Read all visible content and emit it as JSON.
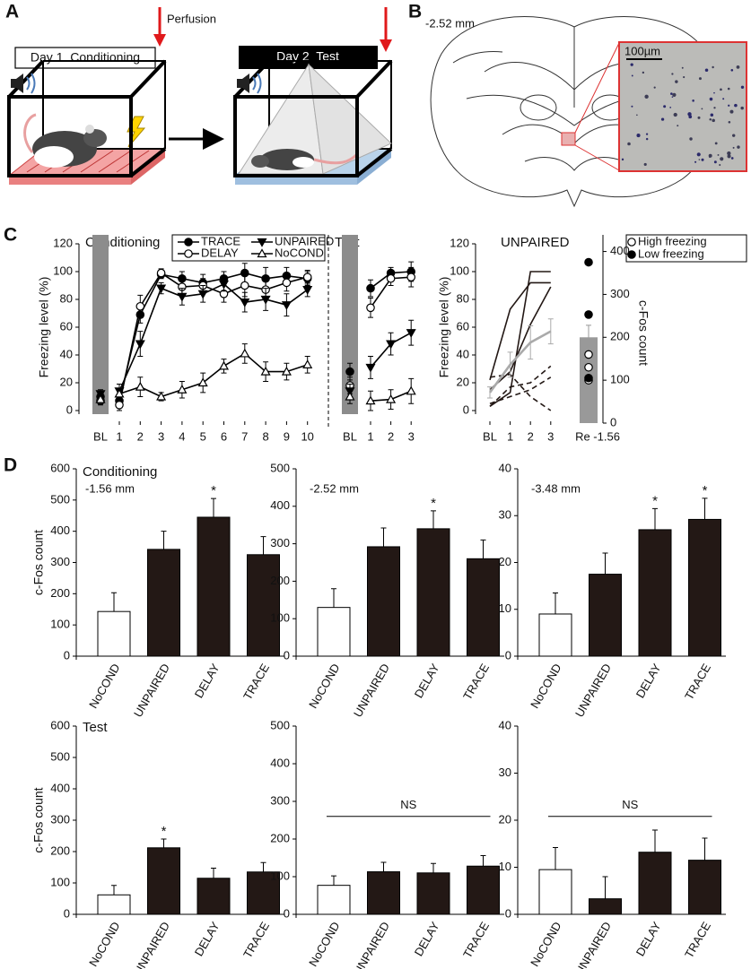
{
  "panels": {
    "A": {
      "label": "A",
      "perfusion": "Perfusion",
      "day1": "Day 1  Conditioning",
      "day2": "Day 2  Test"
    },
    "B": {
      "label": "B",
      "level": "-2.52 mm",
      "scale": "100µm"
    },
    "C": {
      "label": "C"
    },
    "D": {
      "label": "D"
    }
  },
  "chart_data": [
    {
      "type": "line",
      "title": "Conditioning",
      "ylabel": "Freezing level (%)",
      "baseline_label": "BL",
      "categories": [
        "1",
        "2",
        "3",
        "4",
        "5",
        "6",
        "7",
        "8",
        "9",
        "10"
      ],
      "ylim": [
        0,
        120
      ],
      "yticks": [
        0,
        20,
        40,
        60,
        80,
        100,
        120
      ],
      "legend": "top",
      "series": [
        {
          "name": "TRACE",
          "color": "#000000",
          "marker": "filled-circle",
          "baseline": 10,
          "baseline_error": 3,
          "values": [
            7,
            69,
            98,
            95,
            92,
            95,
            99,
            95,
            97,
            95
          ],
          "errors": [
            4,
            6,
            3,
            5,
            6,
            5,
            7,
            8,
            6,
            5
          ]
        },
        {
          "name": "DELAY",
          "color": "#000000",
          "marker": "open-circle",
          "baseline": 7,
          "baseline_error": 3,
          "values": [
            4,
            75,
            99,
            89,
            90,
            84,
            90,
            87,
            92,
            96
          ],
          "errors": [
            4,
            8,
            3,
            6,
            5,
            6,
            8,
            7,
            6,
            5
          ]
        },
        {
          "name": "UNPAIRED",
          "color": "#000000",
          "marker": "filled-triangle-down",
          "baseline": 12,
          "baseline_error": 3,
          "values": [
            14,
            48,
            88,
            82,
            84,
            91,
            78,
            80,
            76,
            87
          ],
          "errors": [
            5,
            9,
            4,
            6,
            6,
            5,
            7,
            8,
            8,
            5
          ]
        },
        {
          "name": "NoCOND",
          "color": "#000000",
          "marker": "open-triangle-up",
          "baseline": 8,
          "baseline_error": 3,
          "values": [
            12,
            17,
            10,
            15,
            20,
            32,
            41,
            28,
            28,
            33
          ],
          "errors": [
            4,
            7,
            3,
            6,
            7,
            5,
            7,
            7,
            6,
            6
          ]
        }
      ]
    },
    {
      "type": "line",
      "title": "Test",
      "baseline_label": "BL",
      "categories": [
        "1",
        "2",
        "3"
      ],
      "ylim": [
        0,
        120
      ],
      "series": [
        {
          "color": "#000000",
          "marker": "filled-circle",
          "baseline": 28,
          "baseline_error": 6,
          "values": [
            88,
            99,
            100
          ],
          "errors": [
            6,
            4,
            7
          ]
        },
        {
          "color": "#000000",
          "marker": "open-circle",
          "baseline": 18,
          "baseline_error": 6,
          "values": [
            74,
            95,
            96
          ],
          "errors": [
            7,
            5,
            7
          ]
        },
        {
          "color": "#000000",
          "marker": "filled-triangle-down",
          "baseline": 14,
          "baseline_error": 5,
          "values": [
            31,
            48,
            56
          ],
          "errors": [
            8,
            8,
            9
          ]
        },
        {
          "color": "#000000",
          "marker": "open-triangle-up",
          "baseline": 10,
          "baseline_error": 5,
          "values": [
            7,
            8,
            14
          ],
          "errors": [
            7,
            7,
            9
          ]
        }
      ]
    },
    {
      "type": "line",
      "title": "UNPAIRED",
      "ylabel": "Freezing level (%)",
      "categories": [
        "BL",
        "1",
        "2",
        "3"
      ],
      "ylim": [
        0,
        120
      ],
      "yticks": [
        0,
        20,
        40,
        60,
        80,
        100,
        120
      ],
      "series": [
        {
          "color": "#231815",
          "style": "solid",
          "values": [
            3,
            13,
            100,
            100
          ]
        },
        {
          "color": "#231815",
          "style": "solid",
          "values": [
            22,
            73,
            92,
            92
          ]
        },
        {
          "color": "#231815",
          "style": "solid",
          "values": [
            15,
            28,
            62,
            89
          ]
        },
        {
          "color": "#231815",
          "style": "dashed",
          "values": [
            24,
            26,
            10,
            0
          ]
        },
        {
          "color": "#231815",
          "style": "dashed",
          "values": [
            3,
            17,
            20,
            32
          ]
        },
        {
          "color": "#231815",
          "style": "dashed",
          "values": [
            5,
            10,
            15,
            24
          ]
        },
        {
          "color": "#aaaaaa",
          "style": "solid",
          "values": [
            13,
            33,
            49,
            57
          ],
          "errors": [
            4,
            9,
            12,
            9
          ]
        }
      ]
    },
    {
      "type": "bar",
      "categories": [
        "Re -1.56"
      ],
      "values": [
        200
      ],
      "errors": [
        28
      ],
      "color": "#999999",
      "y2label": "c-Fos count",
      "y2lim": [
        0,
        420
      ],
      "y2ticks": [
        0,
        100,
        200,
        300,
        400
      ],
      "legend": "upper right",
      "points": [
        {
          "name": "High freezing",
          "marker": "open-circle",
          "color": "#000000",
          "values": [
            160,
            130,
            100
          ]
        },
        {
          "name": "Low freezing",
          "marker": "filled-circle",
          "color": "#000000",
          "values": [
            375,
            253,
            105
          ]
        }
      ]
    },
    {
      "type": "bar",
      "title": "Conditioning",
      "subtitle": "-1.56 mm",
      "ylabel": "c-Fos count",
      "categories": [
        "NoCOND",
        "UNPAIRED",
        "DELAY",
        "TRACE"
      ],
      "values": [
        143,
        342,
        445,
        325
      ],
      "errors": [
        60,
        58,
        60,
        58
      ],
      "colors": [
        "#ffffff",
        "#231815",
        "#231815",
        "#231815"
      ],
      "significance": [
        null,
        null,
        "*",
        null
      ],
      "ylim": [
        0,
        600
      ],
      "yticks": [
        0,
        100,
        200,
        300,
        400,
        500,
        600
      ]
    },
    {
      "type": "bar",
      "subtitle": "-2.52 mm",
      "categories": [
        "NoCOND",
        "UNPAIRED",
        "DELAY",
        "TRACE"
      ],
      "values": [
        130,
        292,
        340,
        260
      ],
      "errors": [
        50,
        50,
        48,
        50
      ],
      "colors": [
        "#ffffff",
        "#231815",
        "#231815",
        "#231815"
      ],
      "significance": [
        null,
        null,
        "*",
        null
      ],
      "ylim": [
        0,
        500
      ],
      "yticks": [
        0,
        100,
        200,
        300,
        400,
        500
      ]
    },
    {
      "type": "bar",
      "subtitle": "-3.48 mm",
      "categories": [
        "NoCOND",
        "UNPAIRED",
        "DELAY",
        "TRACE"
      ],
      "values": [
        9,
        17.5,
        27,
        29.2
      ],
      "errors": [
        4.5,
        4.5,
        4.5,
        4.5
      ],
      "colors": [
        "#ffffff",
        "#231815",
        "#231815",
        "#231815"
      ],
      "significance": [
        null,
        null,
        "*",
        "*"
      ],
      "ylim": [
        0,
        40
      ],
      "yticks": [
        0,
        10,
        20,
        30,
        40
      ]
    },
    {
      "type": "bar",
      "title": "Test",
      "ylabel": "c-Fos count",
      "categories": [
        "NoCOND",
        "UNPAIRED",
        "DELAY",
        "TRACE"
      ],
      "values": [
        62,
        212,
        115,
        135
      ],
      "errors": [
        30,
        28,
        32,
        30
      ],
      "colors": [
        "#ffffff",
        "#231815",
        "#231815",
        "#231815"
      ],
      "significance": [
        null,
        "*",
        null,
        null
      ],
      "ylim": [
        0,
        600
      ],
      "yticks": [
        0,
        100,
        200,
        300,
        400,
        500,
        600
      ]
    },
    {
      "type": "bar",
      "bracket_label": "NS",
      "categories": [
        "NoCOND",
        "UNPAIRED",
        "DELAY",
        "TRACE"
      ],
      "values": [
        77,
        113,
        110,
        128
      ],
      "errors": [
        25,
        25,
        25,
        28
      ],
      "colors": [
        "#ffffff",
        "#231815",
        "#231815",
        "#231815"
      ],
      "ylim": [
        0,
        500
      ],
      "yticks": [
        0,
        100,
        200,
        300,
        400,
        500
      ]
    },
    {
      "type": "bar",
      "bracket_label": "NS",
      "categories": [
        "NoCOND",
        "UNPAIRED",
        "DELAY",
        "TRACE"
      ],
      "values": [
        9.5,
        3.3,
        13.2,
        11.5
      ],
      "errors": [
        4.7,
        4.7,
        4.7,
        4.7
      ],
      "colors": [
        "#ffffff",
        "#231815",
        "#231815",
        "#231815"
      ],
      "ylim": [
        0,
        40
      ],
      "yticks": [
        0,
        10,
        20,
        30,
        40
      ]
    }
  ]
}
